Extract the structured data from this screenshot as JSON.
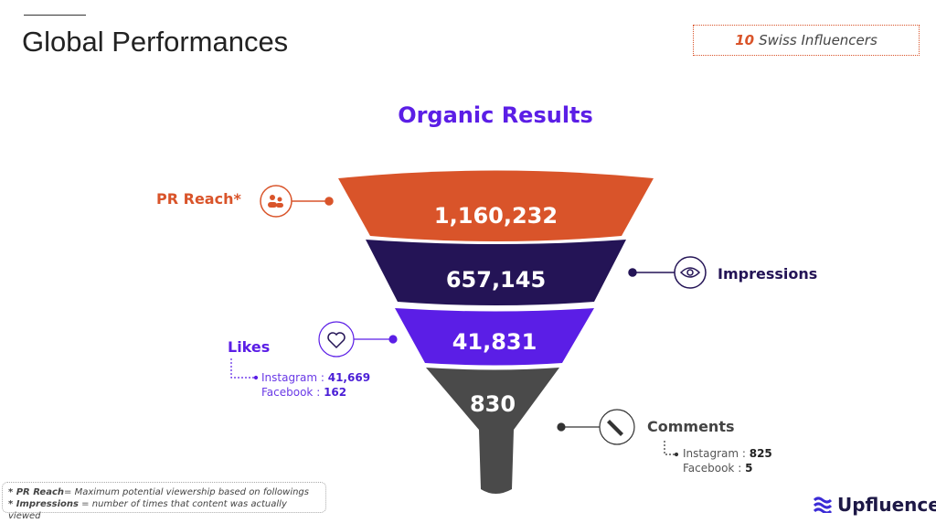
{
  "header": {
    "title": "Global Performances",
    "badge_count": "10",
    "badge_text": "Swiss Influencers"
  },
  "funnel": {
    "title": "Organic Results",
    "stages": [
      {
        "label": "PR Reach*",
        "value": "1,160,232",
        "color": "#d9542a",
        "icon": "people-icon"
      },
      {
        "label": "Impressions",
        "value": "657,145",
        "color": "#241456",
        "icon": "eye-icon"
      },
      {
        "label": "Likes",
        "value": "41,831",
        "color": "#5b1ee6",
        "icon": "heart-icon",
        "breakdown": [
          {
            "k": "Instagram : ",
            "v": "41,669"
          },
          {
            "k": "Facebook : ",
            "v": "162"
          }
        ]
      },
      {
        "label": "Comments",
        "value": "830",
        "color": "#4a4a4a",
        "icon": "pencil-icon",
        "breakdown": [
          {
            "k": "Instagram : ",
            "v": "825"
          },
          {
            "k": "Facebook : ",
            "v": "5"
          }
        ]
      }
    ]
  },
  "footnotes": [
    {
      "term": "* PR Reach",
      "text": "= Maximum potential viewership based on followings"
    },
    {
      "term": "* Impressions",
      "text": " = number of times that content was actually viewed"
    }
  ],
  "logo": "Upfluence"
}
